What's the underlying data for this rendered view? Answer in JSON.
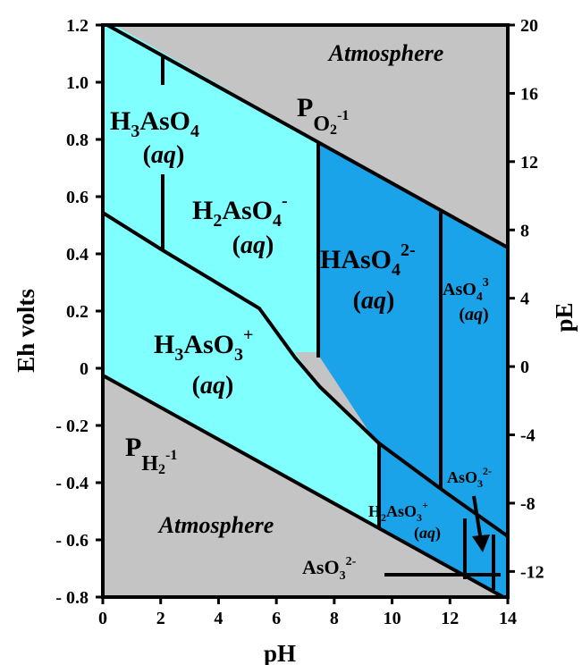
{
  "diagram": {
    "colors": {
      "atmosphere": "#c4c4c4",
      "light_cyan": "#80ffff",
      "mid_blue": "#1aa3e8",
      "line": "#000000"
    },
    "axes": {
      "x_label": "pH",
      "y_left_label": "Eh volts",
      "y_right_label": "pE",
      "x_range": [
        0,
        14
      ],
      "y_left_range": [
        -0.8,
        1.2
      ],
      "y_right_range": [
        -13.5,
        20
      ],
      "x_ticks": [
        "0",
        "2",
        "4",
        "6",
        "8",
        "10",
        "12",
        "14"
      ],
      "y_left_ticks": [
        "1.2",
        "1.0",
        "0.8",
        "0.6",
        "0.4",
        "0.2",
        "0",
        "- 0.2",
        "- 0.4",
        "- 0.6",
        "- 0.8"
      ],
      "y_right_ticks": [
        "20",
        "16",
        "12",
        "8",
        "4",
        "0",
        "-4",
        "-8",
        "-12"
      ]
    },
    "labels": {
      "atmosphere_top": "Atmosphere",
      "atmosphere_bottom": "Atmosphere",
      "o2_p": "P",
      "o2_sub": "O",
      "o2_sub2": "2",
      "o2_sup": "-1",
      "h2_p": "P",
      "h2_sub": "H",
      "h2_sub2": "2",
      "h2_sup": "-1",
      "aq": "aq",
      "h3aso4": {
        "a": "H",
        "b": "3",
        "c": "AsO",
        "d": "4"
      },
      "h2aso4": {
        "a": "H",
        "b": "2",
        "c": "AsO",
        "d": "4",
        "sup": "-"
      },
      "haso4": {
        "a": "HAsO",
        "b": "4",
        "sup": "2-"
      },
      "aso4": {
        "a": "AsO",
        "b": "4",
        "sup": "3"
      },
      "h3aso3": {
        "a": "H",
        "b": "3",
        "c": "AsO",
        "d": "3",
        "sup": "+"
      },
      "h2aso3": {
        "a": "H",
        "b": "2",
        "c": "AsO",
        "d": "3",
        "sup": "+"
      },
      "aso3_right": {
        "a": "AsO",
        "b": "3",
        "sup": "2-"
      },
      "aso3_bottom": {
        "a": "AsO",
        "b": "3",
        "sup": "2-"
      }
    }
  }
}
